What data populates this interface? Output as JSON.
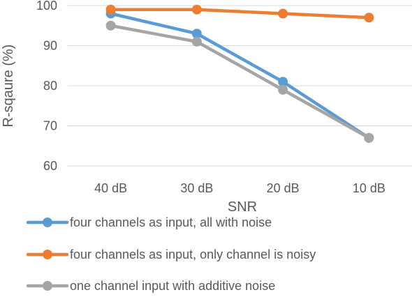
{
  "chart_data": {
    "type": "line",
    "categories": [
      "40 dB",
      "30 dB",
      "20 dB",
      "10 dB"
    ],
    "xlabel": "SNR",
    "ylabel": "R-sqaure (%)",
    "ylim": [
      60,
      100
    ],
    "yticks": [
      60,
      70,
      80,
      90,
      100
    ],
    "grid": true,
    "legend_position": "bottom",
    "series": [
      {
        "name": "four channels as input, all with noise",
        "color": "#5b9bd5",
        "values": [
          98,
          93,
          81,
          67
        ]
      },
      {
        "name": "four channels as input, only channel is noisy",
        "color": "#ed7d31",
        "values": [
          99,
          99,
          98,
          97
        ]
      },
      {
        "name": "one channel input with additive noise",
        "color": "#a5a5a5",
        "values": [
          95,
          91,
          79,
          67
        ]
      }
    ]
  }
}
